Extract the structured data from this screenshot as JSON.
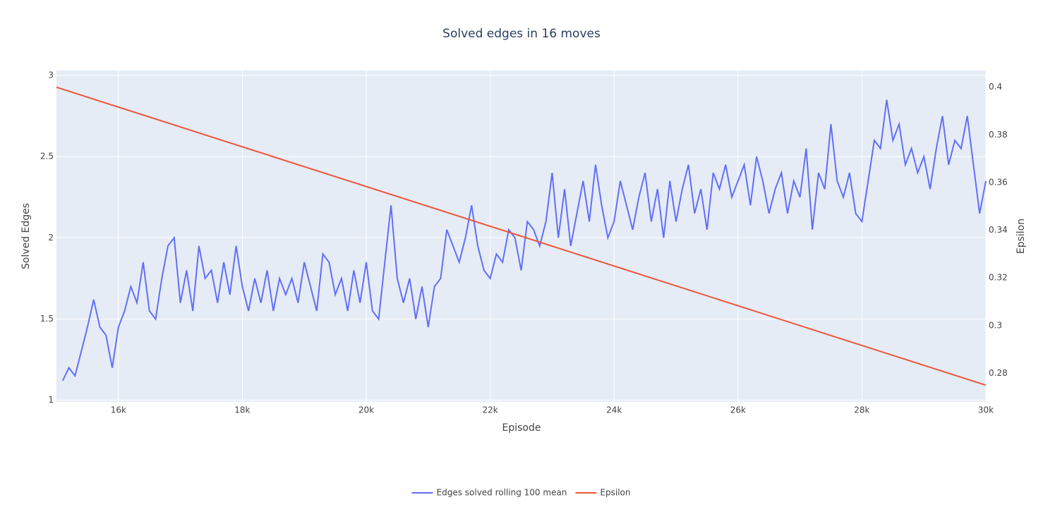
{
  "chart_data": {
    "type": "line",
    "title": "Solved edges in 16 moves",
    "x_label": "Episode",
    "y_label": "Solved Edges",
    "y2_label": "Epsilon",
    "xlim": [
      15000,
      30000
    ],
    "ylim": [
      0.99,
      3.03
    ],
    "y2lim": [
      0.268,
      0.407
    ],
    "xticks": [
      {
        "value": 16000,
        "label": "16k"
      },
      {
        "value": 18000,
        "label": "18k"
      },
      {
        "value": 20000,
        "label": "20k"
      },
      {
        "value": 22000,
        "label": "22k"
      },
      {
        "value": 24000,
        "label": "24k"
      },
      {
        "value": 26000,
        "label": "26k"
      },
      {
        "value": 28000,
        "label": "28k"
      },
      {
        "value": 30000,
        "label": "30k"
      }
    ],
    "yticks": [
      1,
      1.5,
      2,
      2.5,
      3
    ],
    "y2ticks": [
      0.28,
      0.3,
      0.32,
      0.34,
      0.36,
      0.38,
      0.4
    ],
    "grid": true,
    "legend": "bottom",
    "series": [
      {
        "name": "Edges solved rolling 100 mean",
        "color": "#636efa",
        "x": [
          15100,
          15200,
          15300,
          15400,
          15500,
          15600,
          15700,
          15800,
          15900,
          16000,
          16100,
          16200,
          16300,
          16400,
          16500,
          16600,
          16700,
          16800,
          16900,
          17000,
          17100,
          17200,
          17300,
          17400,
          17500,
          17600,
          17700,
          17800,
          17900,
          18000,
          18100,
          18200,
          18300,
          18400,
          18500,
          18600,
          18700,
          18800,
          18900,
          19000,
          19100,
          19200,
          19300,
          19400,
          19500,
          19600,
          19700,
          19800,
          19900,
          20000,
          20100,
          20200,
          20300,
          20400,
          20500,
          20600,
          20700,
          20800,
          20900,
          21000,
          21100,
          21200,
          21300,
          21400,
          21500,
          21600,
          21700,
          21800,
          21900,
          22000,
          22100,
          22200,
          22300,
          22400,
          22500,
          22600,
          22700,
          22800,
          22900,
          23000,
          23100,
          23200,
          23300,
          23400,
          23500,
          23600,
          23700,
          23800,
          23900,
          24000,
          24100,
          24200,
          24300,
          24400,
          24500,
          24600,
          24700,
          24800,
          24900,
          25000,
          25100,
          25200,
          25300,
          25400,
          25500,
          25600,
          25700,
          25800,
          25900,
          26000,
          26100,
          26200,
          26300,
          26400,
          26500,
          26600,
          26700,
          26800,
          26900,
          27000,
          27100,
          27200,
          27300,
          27400,
          27500,
          27600,
          27700,
          27800,
          27900,
          28000,
          28100,
          28200,
          28300,
          28400,
          28500,
          28600,
          28700,
          28800,
          28900,
          29000,
          29100,
          29200,
          29300,
          29400,
          29500,
          29600,
          29700,
          29800,
          29900,
          30000
        ],
        "values": [
          1.12,
          1.2,
          1.15,
          1.3,
          1.45,
          1.62,
          1.45,
          1.4,
          1.2,
          1.45,
          1.55,
          1.7,
          1.6,
          1.85,
          1.55,
          1.5,
          1.75,
          1.95,
          2.0,
          1.6,
          1.8,
          1.55,
          1.95,
          1.75,
          1.8,
          1.6,
          1.85,
          1.65,
          1.95,
          1.7,
          1.55,
          1.75,
          1.6,
          1.8,
          1.55,
          1.75,
          1.65,
          1.75,
          1.6,
          1.85,
          1.7,
          1.55,
          1.9,
          1.85,
          1.65,
          1.75,
          1.55,
          1.8,
          1.6,
          1.85,
          1.55,
          1.5,
          1.85,
          2.2,
          1.75,
          1.6,
          1.75,
          1.5,
          1.7,
          1.45,
          1.7,
          1.75,
          2.05,
          1.95,
          1.85,
          2.0,
          2.2,
          1.95,
          1.8,
          1.75,
          1.9,
          1.85,
          2.05,
          2.0,
          1.8,
          2.1,
          2.05,
          1.95,
          2.1,
          2.4,
          2.0,
          2.3,
          1.95,
          2.15,
          2.35,
          2.1,
          2.45,
          2.2,
          2.0,
          2.1,
          2.35,
          2.2,
          2.05,
          2.25,
          2.4,
          2.1,
          2.3,
          2.0,
          2.35,
          2.1,
          2.3,
          2.45,
          2.15,
          2.3,
          2.05,
          2.4,
          2.3,
          2.45,
          2.25,
          2.35,
          2.45,
          2.2,
          2.5,
          2.35,
          2.15,
          2.3,
          2.4,
          2.15,
          2.35,
          2.25,
          2.55,
          2.05,
          2.4,
          2.3,
          2.7,
          2.35,
          2.25,
          2.4,
          2.15,
          2.1,
          2.35,
          2.6,
          2.55,
          2.85,
          2.6,
          2.7,
          2.45,
          2.55,
          2.4,
          2.5,
          2.3,
          2.55,
          2.75,
          2.45,
          2.6,
          2.55,
          2.75,
          2.45,
          2.15,
          2.35
        ]
      },
      {
        "name": "Epsilon",
        "color": "#EF553B",
        "axis": "y2",
        "x": [
          15000,
          30000
        ],
        "values": [
          0.4,
          0.275
        ]
      }
    ]
  }
}
